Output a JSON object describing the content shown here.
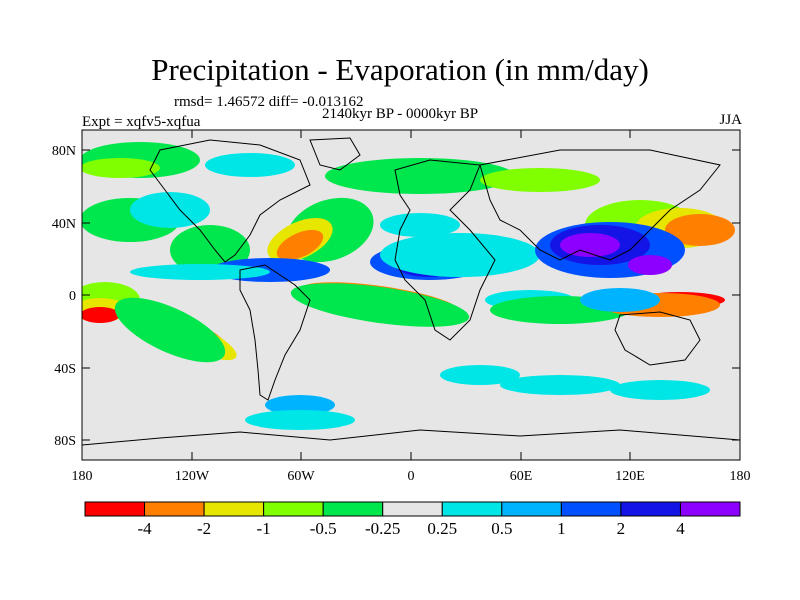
{
  "title": "Precipitation - Evaporation (in mm/day)",
  "stats": "rmsd= 1.46572 diff= -0.013162",
  "period": "2140kyr BP - 0000kyr BP",
  "experiment": "Expt = xqfv5-xqfua",
  "season": "JJA",
  "axes": {
    "y_ticks": [
      "80N",
      "40N",
      "0",
      "40S",
      "80S"
    ],
    "x_ticks": [
      "180",
      "120W",
      "60W",
      "0",
      "60E",
      "120E",
      "180"
    ]
  },
  "colorbar": {
    "colors": [
      "#ff0000",
      "#ff8000",
      "#e6e600",
      "#80ff00",
      "#00e64d",
      "#e6e6e6",
      "#00e6e6",
      "#00b3ff",
      "#0050ff",
      "#1414e6",
      "#8c00ff"
    ],
    "labels": [
      "-4",
      "-2",
      "-1",
      "-0.5",
      "-0.25",
      "0.25",
      "0.5",
      "1",
      "2",
      "4"
    ]
  },
  "palette": {
    "strong_neg": "#ff0000",
    "neg": "#ff8000",
    "mild_neg": "#e6e600",
    "light_neg": "#80ff00",
    "weak_neg": "#00e64d",
    "neutral": "#e6e6e6",
    "weak_pos": "#00e6e6",
    "light_pos": "#00b3ff",
    "pos": "#0050ff",
    "strong_pos": "#1414e6",
    "extreme_pos": "#8c00ff",
    "coast": "#000000"
  }
}
